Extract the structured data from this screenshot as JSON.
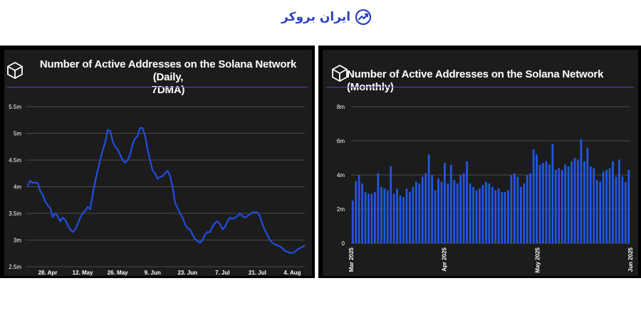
{
  "brand": {
    "name": "ایران بروکر",
    "accent_color": "#2a3fc4",
    "icon": "chart-trend-icon"
  },
  "charts": {
    "daily": {
      "title_line1": "Number of Active Addresses on the Solana Network (Daily,",
      "title_line2": "7DMA)",
      "icon": "cube-logo-icon"
    },
    "monthly": {
      "title": "Number of Active Addresses on the Solana Network (Monthly)",
      "icon": "cube-logo-icon"
    }
  },
  "colors": {
    "line": "#1f4fe0",
    "bar": "#2257e6",
    "divider": "#7a2fd0",
    "panel": "#1c1c1c"
  },
  "chart_data": [
    {
      "type": "line",
      "title": "Number of Active Addresses on the Solana Network (Daily, 7DMA)",
      "x_ticks": [
        "28. Apr",
        "12. May",
        "26. May",
        "9. Jun",
        "23. Jun",
        "7. Jul",
        "21. Jul",
        "4. Aug"
      ],
      "y_ticks": [
        "5.5m",
        "5m",
        "4.5m",
        "4m",
        "3.5m",
        "3m",
        "2.5m"
      ],
      "ylim": [
        2.5,
        5.5
      ],
      "y_unit": "m",
      "grid": true,
      "x_start": "2025-04-20",
      "y": [
        4.02,
        4.11,
        4.07,
        4.08,
        4.07,
        3.92,
        3.85,
        3.72,
        3.65,
        3.6,
        3.43,
        3.5,
        3.45,
        3.35,
        3.42,
        3.38,
        3.28,
        3.2,
        3.15,
        3.2,
        3.3,
        3.42,
        3.5,
        3.55,
        3.62,
        3.58,
        3.85,
        4.1,
        4.3,
        4.5,
        4.68,
        4.82,
        5.06,
        5.05,
        4.85,
        4.75,
        4.7,
        4.6,
        4.5,
        4.45,
        4.5,
        4.6,
        4.8,
        4.9,
        4.95,
        5.1,
        5.1,
        4.95,
        4.7,
        4.5,
        4.3,
        4.25,
        4.15,
        4.18,
        4.2,
        4.25,
        4.3,
        4.2,
        4.0,
        3.7,
        3.6,
        3.5,
        3.42,
        3.3,
        3.22,
        3.2,
        3.1,
        3.02,
        2.98,
        2.95,
        3.0,
        3.1,
        3.15,
        3.15,
        3.25,
        3.32,
        3.35,
        3.3,
        3.2,
        3.25,
        3.35,
        3.42,
        3.4,
        3.42,
        3.45,
        3.5,
        3.45,
        3.42,
        3.45,
        3.48,
        3.52,
        3.52,
        3.52,
        3.45,
        3.3,
        3.18,
        3.1,
        3.0,
        2.95,
        2.92,
        2.9,
        2.88,
        2.85,
        2.8,
        2.78,
        2.76,
        2.76,
        2.78,
        2.82,
        2.85,
        2.87,
        2.9
      ]
    },
    {
      "type": "bar",
      "title": "Number of Active Addresses on the Solana Network (Monthly)",
      "x_ticks": [
        "Mar 2025",
        "Apr 2025",
        "May 2025",
        "Jun 2025"
      ],
      "y_ticks": [
        "8m",
        "6m",
        "4m",
        "2m",
        "0"
      ],
      "ylim": [
        0,
        8
      ],
      "y_unit": "m",
      "grid": true,
      "values": [
        2.5,
        3.65,
        4.0,
        3.5,
        3.0,
        2.9,
        2.9,
        3.0,
        4.1,
        3.3,
        3.2,
        3.1,
        4.5,
        2.9,
        3.2,
        2.8,
        2.7,
        3.2,
        3.0,
        3.3,
        3.6,
        3.5,
        3.9,
        4.1,
        5.2,
        4.0,
        3.1,
        3.8,
        3.6,
        4.7,
        3.5,
        4.6,
        3.7,
        3.5,
        4.0,
        4.1,
        4.8,
        3.5,
        3.3,
        3.1,
        3.2,
        3.4,
        3.6,
        3.5,
        3.3,
        3.1,
        3.2,
        3.0,
        3.0,
        3.1,
        4.0,
        4.1,
        3.9,
        3.3,
        3.5,
        4.0,
        4.1,
        5.5,
        5.2,
        4.6,
        4.7,
        4.8,
        4.6,
        5.8,
        4.3,
        4.4,
        4.3,
        4.6,
        4.5,
        4.8,
        5.0,
        4.9,
        6.1,
        4.8,
        5.6,
        4.5,
        4.4,
        3.7,
        3.6,
        4.2,
        4.3,
        4.4,
        4.8,
        3.9,
        4.9,
        3.9,
        3.6,
        4.3
      ]
    }
  ]
}
